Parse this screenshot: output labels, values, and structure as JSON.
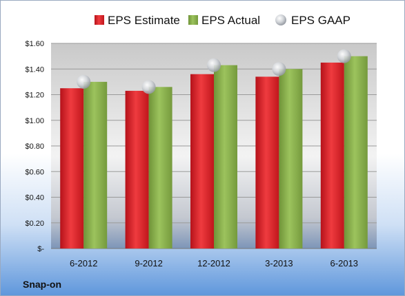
{
  "chart_data": {
    "type": "bar",
    "company": "Snap-on",
    "categories": [
      "6-2012",
      "9-2012",
      "12-2012",
      "3-2013",
      "6-2013"
    ],
    "series": [
      {
        "name": "EPS Estimate",
        "kind": "bar",
        "color": "#e0262b",
        "values": [
          1.25,
          1.23,
          1.36,
          1.34,
          1.45
        ]
      },
      {
        "name": "EPS Actual",
        "kind": "bar",
        "color": "#8db050",
        "values": [
          1.3,
          1.26,
          1.43,
          1.4,
          1.5
        ]
      },
      {
        "name": "EPS GAAP",
        "kind": "marker",
        "color": "#c6c9cf",
        "values": [
          1.3,
          1.26,
          1.43,
          1.4,
          1.5
        ]
      }
    ],
    "ylim": [
      0,
      1.6
    ],
    "y_ticks": [
      {
        "value": 0,
        "label": "$-"
      },
      {
        "value": 0.2,
        "label": "$0.20"
      },
      {
        "value": 0.4,
        "label": "$0.40"
      },
      {
        "value": 0.6,
        "label": "$0.60"
      },
      {
        "value": 0.8,
        "label": "$0.80"
      },
      {
        "value": 1.0,
        "label": "$1.00"
      },
      {
        "value": 1.2,
        "label": "$1.20"
      },
      {
        "value": 1.4,
        "label": "$1.40"
      },
      {
        "value": 1.6,
        "label": "$1.60"
      }
    ],
    "grid": true,
    "legend_position": "top"
  }
}
